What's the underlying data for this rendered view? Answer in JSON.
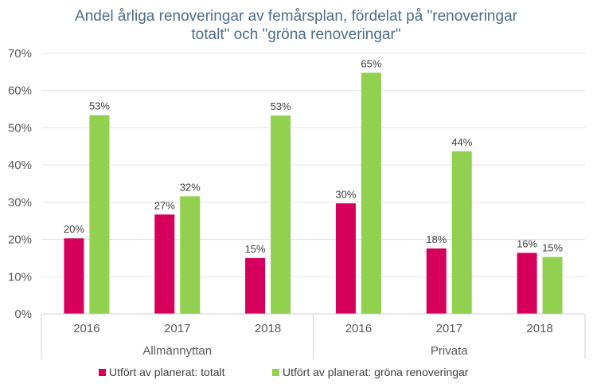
{
  "chart_data": {
    "type": "bar",
    "title_lines": [
      "Andel årliga renoveringar av femårsplan, fördelat på \"renoveringar",
      "totalt\" och \"gröna renoveringar\""
    ],
    "ylim": [
      0,
      70
    ],
    "yticks": [
      0,
      10,
      20,
      30,
      40,
      50,
      60,
      70
    ],
    "ytick_labels": [
      "0%",
      "10%",
      "20%",
      "30%",
      "40%",
      "50%",
      "60%",
      "70%"
    ],
    "groups": [
      {
        "name": "Allmännyttan",
        "categories": [
          "2016",
          "2017",
          "2018"
        ]
      },
      {
        "name": "Privata",
        "categories": [
          "2016",
          "2017",
          "2018"
        ]
      }
    ],
    "categories": [
      "2016",
      "2017",
      "2018",
      "2016",
      "2017",
      "2018"
    ],
    "series": [
      {
        "name": "Utfört av planerat: totalt",
        "color": "#d6005c",
        "values": [
          20.3,
          26.7,
          15.0,
          29.7,
          17.6,
          16.4
        ],
        "labels": [
          "20%",
          "27%",
          "15%",
          "30%",
          "18%",
          "16%"
        ]
      },
      {
        "name": "Utfört av planerat: gröna renoveringar",
        "color": "#92d050",
        "values": [
          53.4,
          31.6,
          53.3,
          64.8,
          43.7,
          15.3
        ],
        "labels": [
          "53%",
          "32%",
          "53%",
          "65%",
          "44%",
          "15%"
        ]
      }
    ],
    "legend_position": "bottom",
    "grid": true
  }
}
